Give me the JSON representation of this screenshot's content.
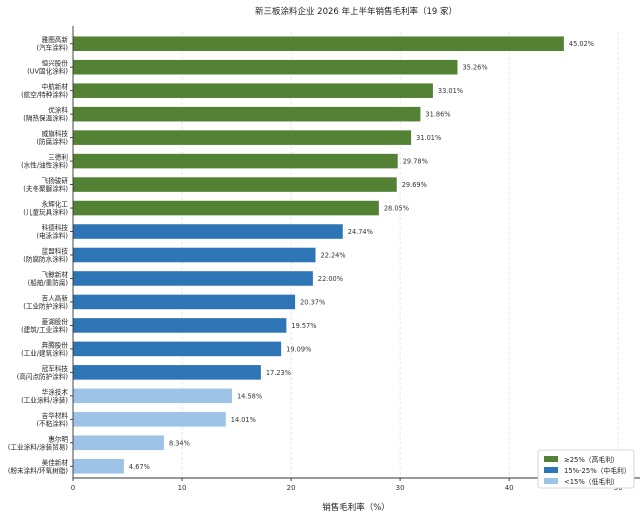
{
  "chart_data": {
    "type": "bar",
    "orientation": "horizontal",
    "title": "新三板涂料企业 2026 年上半年销售毛利率（19 家）",
    "xlabel": "销售毛利率（%）",
    "ylabel": "",
    "xlim": [
      0,
      52
    ],
    "xticks": [
      0,
      10,
      20,
      30,
      40,
      50
    ],
    "grid": true,
    "legend_position": "bottom-right",
    "categories": [
      {
        "name": "雅图高新",
        "sub": "(汽车涂料)",
        "value": 45.02,
        "value_label": "45.02%",
        "group": "high"
      },
      {
        "name": "恒兴股份",
        "sub": "(UV固化涂料)",
        "value": 35.26,
        "value_label": "35.26%",
        "group": "high"
      },
      {
        "name": "中航新材",
        "sub": "(航空/特种涂料)",
        "value": 33.01,
        "value_label": "33.01%",
        "group": "high"
      },
      {
        "name": "优涂科",
        "sub": "(隔热保温涂料)",
        "value": 31.86,
        "value_label": "31.86%",
        "group": "high"
      },
      {
        "name": "威旗科技",
        "sub": "(防腐涂料)",
        "value": 31.01,
        "value_label": "31.01%",
        "group": "high"
      },
      {
        "name": "三德利",
        "sub": "(水性/油性涂料)",
        "value": 29.78,
        "value_label": "29.78%",
        "group": "high"
      },
      {
        "name": "飞扬骏研",
        "sub": "(夫冬聚脲涂料)",
        "value": 29.69,
        "value_label": "29.69%",
        "group": "high"
      },
      {
        "name": "永辉化工",
        "sub": "(儿童玩具涂料)",
        "value": 28.05,
        "value_label": "28.05%",
        "group": "high"
      },
      {
        "name": "科德科技",
        "sub": "(电泳涂料)",
        "value": 24.74,
        "value_label": "24.74%",
        "group": "mid"
      },
      {
        "name": "蓝盟科技",
        "sub": "(防腐防水涂料)",
        "value": 22.24,
        "value_label": "22.24%",
        "group": "mid"
      },
      {
        "name": "飞鲸新材",
        "sub": "(船舶/重防腐)",
        "value": 22.0,
        "value_label": "22.00%",
        "group": "mid"
      },
      {
        "name": "吉人高新",
        "sub": "(工业防护涂料)",
        "value": 20.37,
        "value_label": "20.37%",
        "group": "mid"
      },
      {
        "name": "菱湖股份",
        "sub": "(建筑/工业涂料)",
        "value": 19.57,
        "value_label": "19.57%",
        "group": "mid"
      },
      {
        "name": "奔腾股份",
        "sub": "(工业/建筑涂料)",
        "value": 19.09,
        "value_label": "19.09%",
        "group": "mid"
      },
      {
        "name": "冠军科技",
        "sub": "(高闪点防护涂料)",
        "value": 17.23,
        "value_label": "17.23%",
        "group": "mid"
      },
      {
        "name": "华涂技术",
        "sub": "(工业涂料/涂装)",
        "value": 14.58,
        "value_label": "14.58%",
        "group": "low"
      },
      {
        "name": "吉华材料",
        "sub": "(不粘涂料)",
        "value": 14.01,
        "value_label": "14.01%",
        "group": "low"
      },
      {
        "name": "惠尔明",
        "sub": "(工业涂料/涂装贸易)",
        "value": 8.34,
        "value_label": "8.34%",
        "group": "low"
      },
      {
        "name": "美佳新材",
        "sub": "(粉末涂料/环氧树脂)",
        "value": 4.67,
        "value_label": "4.67%",
        "group": "low"
      }
    ],
    "groups": {
      "high": {
        "label": "≥25%（高毛利）",
        "color": "#548235"
      },
      "mid": {
        "label": "15%-25%（中毛利）",
        "color": "#2e75b6"
      },
      "low": {
        "label": "<15%（低毛利）",
        "color": "#9dc3e6"
      }
    },
    "legend_order": [
      "high",
      "mid",
      "low"
    ]
  }
}
